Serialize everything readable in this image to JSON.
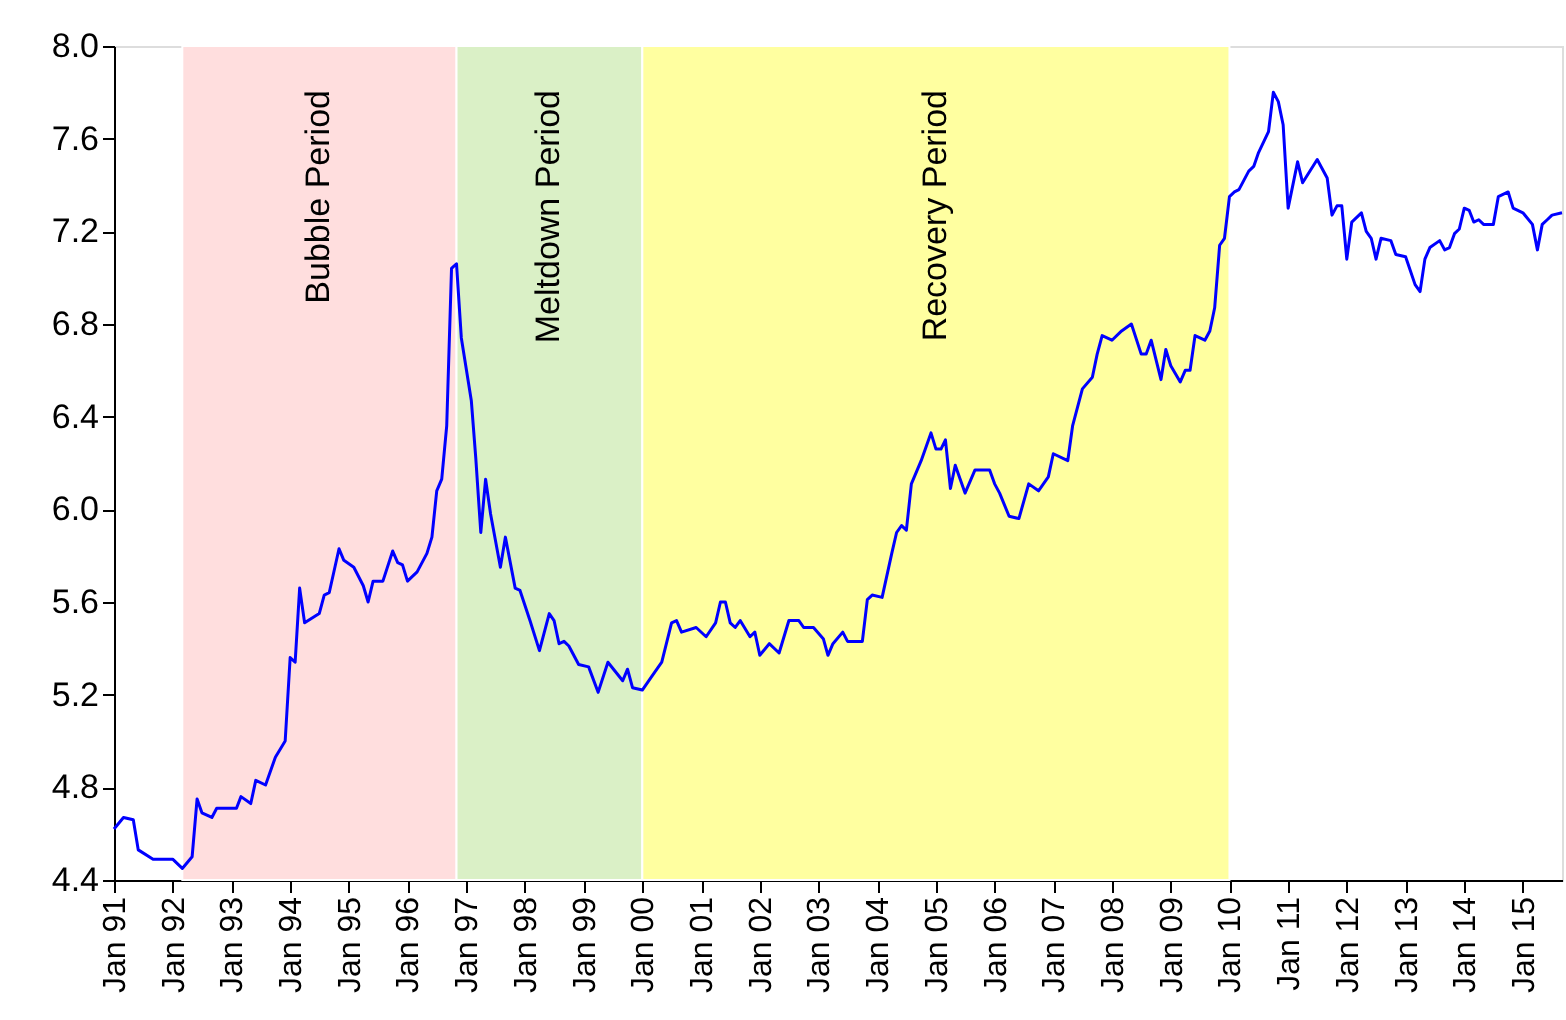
{
  "chart_data": {
    "type": "line",
    "x": [
      "1991-01",
      "1991-03",
      "1991-05",
      "1991-06",
      "1991-09",
      "1992-01",
      "1992-03",
      "1992-05",
      "1992-06",
      "1992-07",
      "1992-09",
      "1992-10",
      "1993-02",
      "1993-03",
      "1993-05",
      "1993-06",
      "1993-08",
      "1993-10",
      "1993-12",
      "1994-01",
      "1994-02",
      "1994-03",
      "1994-04",
      "1994-07",
      "1994-08",
      "1994-09",
      "1994-11",
      "1994-12",
      "1995-02",
      "1995-04",
      "1995-05",
      "1995-06",
      "1995-08",
      "1995-10",
      "1995-11",
      "1995-12",
      "1996-01",
      "1996-03",
      "1996-05",
      "1996-06",
      "1996-07",
      "1996-08",
      "1996-09",
      "1996-10",
      "1996-11",
      "1996-12",
      "1997-02",
      "1997-03",
      "1997-04",
      "1997-05",
      "1997-06",
      "1997-08",
      "1997-09",
      "1997-11",
      "1997-12",
      "1998-02",
      "1998-04",
      "1998-06",
      "1998-07",
      "1998-08",
      "1998-09",
      "1998-10",
      "1998-12",
      "1999-02",
      "1999-04",
      "1999-06",
      "1999-09",
      "1999-10",
      "1999-11",
      "2000-01",
      "2000-03",
      "2000-05",
      "2000-07",
      "2000-08",
      "2000-09",
      "2000-12",
      "2001-02",
      "2001-04",
      "2001-05",
      "2001-06",
      "2001-07",
      "2001-08",
      "2001-09",
      "2001-11",
      "2001-12",
      "2002-01",
      "2002-03",
      "2002-05",
      "2002-07",
      "2002-09",
      "2002-10",
      "2002-12",
      "2003-02",
      "2003-03",
      "2003-04",
      "2003-06",
      "2003-07",
      "2003-10",
      "2003-11",
      "2003-12",
      "2004-02",
      "2004-04",
      "2004-05",
      "2004-06",
      "2004-07",
      "2004-08",
      "2004-10",
      "2004-12",
      "2005-01",
      "2005-02",
      "2005-03",
      "2005-04",
      "2005-05",
      "2005-07",
      "2005-09",
      "2005-12",
      "2006-01",
      "2006-02",
      "2006-04",
      "2006-06",
      "2006-08",
      "2006-10",
      "2006-12",
      "2007-01",
      "2007-04",
      "2007-05",
      "2007-07",
      "2007-09",
      "2007-10",
      "2007-11",
      "2008-01",
      "2008-03",
      "2008-05",
      "2008-07",
      "2008-08",
      "2008-09",
      "2008-11",
      "2008-12",
      "2009-01",
      "2009-03",
      "2009-04",
      "2009-05",
      "2009-06",
      "2009-08",
      "2009-09",
      "2009-10",
      "2009-11",
      "2009-12",
      "2010-01",
      "2010-02",
      "2010-03",
      "2010-05",
      "2010-06",
      "2010-07",
      "2010-09",
      "2010-10",
      "2010-11",
      "2010-12",
      "2011-01",
      "2011-03",
      "2011-04",
      "2011-07",
      "2011-09",
      "2011-10",
      "2011-11",
      "2011-12",
      "2012-01",
      "2012-02",
      "2012-04",
      "2012-05",
      "2012-06",
      "2012-07",
      "2012-08",
      "2012-10",
      "2012-11",
      "2013-01",
      "2013-03",
      "2013-04",
      "2013-05",
      "2013-06",
      "2013-08",
      "2013-09",
      "2013-10",
      "2013-11",
      "2013-12",
      "2014-01",
      "2014-02",
      "2014-03",
      "2014-04",
      "2014-05",
      "2014-07",
      "2014-08",
      "2014-10",
      "2014-11",
      "2015-01",
      "2015-03",
      "2015-04",
      "2015-05",
      "2015-06",
      "2015-07",
      "2015-09"
    ],
    "series": [
      {
        "color": "#0000ff",
        "values": [
          4.62,
          4.67,
          4.66,
          4.53,
          4.49,
          4.49,
          4.45,
          4.5,
          4.75,
          4.69,
          4.67,
          4.71,
          4.71,
          4.76,
          4.73,
          4.83,
          4.81,
          4.93,
          5.0,
          5.36,
          5.34,
          5.66,
          5.51,
          5.55,
          5.63,
          5.64,
          5.83,
          5.78,
          5.75,
          5.67,
          5.6,
          5.69,
          5.69,
          5.82,
          5.77,
          5.76,
          5.69,
          5.73,
          5.81,
          5.88,
          6.08,
          6.13,
          6.36,
          7.04,
          7.06,
          6.74,
          6.47,
          6.22,
          5.9,
          6.13,
          5.98,
          5.75,
          5.88,
          5.66,
          5.65,
          5.52,
          5.39,
          5.55,
          5.52,
          5.42,
          5.43,
          5.41,
          5.33,
          5.32,
          5.21,
          5.34,
          5.26,
          5.31,
          5.23,
          5.22,
          5.28,
          5.34,
          5.51,
          5.52,
          5.47,
          5.49,
          5.45,
          5.51,
          5.6,
          5.6,
          5.51,
          5.49,
          5.52,
          5.45,
          5.47,
          5.37,
          5.42,
          5.38,
          5.52,
          5.52,
          5.49,
          5.49,
          5.44,
          5.37,
          5.42,
          5.47,
          5.43,
          5.43,
          5.61,
          5.63,
          5.62,
          5.81,
          5.9,
          5.93,
          5.91,
          6.11,
          6.21,
          6.33,
          6.26,
          6.26,
          6.3,
          6.09,
          6.19,
          6.07,
          6.17,
          6.17,
          6.11,
          6.07,
          5.97,
          5.96,
          6.11,
          6.08,
          6.14,
          6.24,
          6.21,
          6.36,
          6.52,
          6.57,
          6.67,
          6.75,
          6.73,
          6.77,
          6.8,
          6.67,
          6.67,
          6.73,
          6.56,
          6.69,
          6.62,
          6.55,
          6.6,
          6.6,
          6.75,
          6.73,
          6.77,
          6.87,
          7.14,
          7.17,
          7.35,
          7.37,
          7.38,
          7.46,
          7.48,
          7.54,
          7.63,
          7.8,
          7.76,
          7.66,
          7.3,
          7.5,
          7.41,
          7.51,
          7.43,
          7.27,
          7.31,
          7.31,
          7.08,
          7.24,
          7.28,
          7.2,
          7.17,
          7.08,
          7.17,
          7.16,
          7.1,
          7.09,
          6.97,
          6.94,
          7.08,
          7.13,
          7.16,
          7.12,
          7.13,
          7.19,
          7.21,
          7.3,
          7.29,
          7.24,
          7.25,
          7.23,
          7.23,
          7.35,
          7.37,
          7.3,
          7.28,
          7.23,
          7.12,
          7.23,
          7.25,
          7.27,
          7.28
        ]
      }
    ],
    "xlim": [
      "1991-01",
      "2015-09"
    ],
    "xticks": [
      {
        "value": "1991-01",
        "label": "Jan 91"
      },
      {
        "value": "1992-01",
        "label": "Jan 92"
      },
      {
        "value": "1993-01",
        "label": "Jan 93"
      },
      {
        "value": "1994-01",
        "label": "Jan 94"
      },
      {
        "value": "1995-01",
        "label": "Jan 95"
      },
      {
        "value": "1996-01",
        "label": "Jan 96"
      },
      {
        "value": "1997-01",
        "label": "Jan 97"
      },
      {
        "value": "1998-01",
        "label": "Jan 98"
      },
      {
        "value": "1999-01",
        "label": "Jan 99"
      },
      {
        "value": "2000-01",
        "label": "Jan 00"
      },
      {
        "value": "2001-01",
        "label": "Jan 01"
      },
      {
        "value": "2002-01",
        "label": "Jan 02"
      },
      {
        "value": "2003-01",
        "label": "Jan 03"
      },
      {
        "value": "2004-01",
        "label": "Jan 04"
      },
      {
        "value": "2005-01",
        "label": "Jan 05"
      },
      {
        "value": "2006-01",
        "label": "Jan 06"
      },
      {
        "value": "2007-01",
        "label": "Jan 07"
      },
      {
        "value": "2008-01",
        "label": "Jan 08"
      },
      {
        "value": "2009-01",
        "label": "Jan 09"
      },
      {
        "value": "2010-01",
        "label": "Jan 10"
      },
      {
        "value": "2011-01",
        "label": "Jan 11"
      },
      {
        "value": "2012-01",
        "label": "Jan 12"
      },
      {
        "value": "2013-01",
        "label": "Jan 13"
      },
      {
        "value": "2014-01",
        "label": "Jan 14"
      },
      {
        "value": "2015-01",
        "label": "Jan 15"
      }
    ],
    "ylim": [
      4.4,
      8.0
    ],
    "yticks": [
      4.4,
      4.8,
      5.2,
      5.6,
      {
        "value": 6,
        "label": "6.0"
      },
      6.4,
      6.8,
      7.2,
      7.6,
      {
        "value": 8,
        "label": "8.0"
      }
    ],
    "bands": [
      {
        "axis": "x",
        "from": "1992-03",
        "to": "1996-11",
        "label": "Bubble Period",
        "color": "#ffdede"
      },
      {
        "axis": "x",
        "from": "1996-11",
        "to": "2000-01",
        "label": "Meltdown Period",
        "color": "#daf0c6"
      },
      {
        "axis": "x",
        "from": "2000-01",
        "to": "2010-01",
        "label": "Recovery Period",
        "color": "#ffffa0"
      }
    ]
  }
}
